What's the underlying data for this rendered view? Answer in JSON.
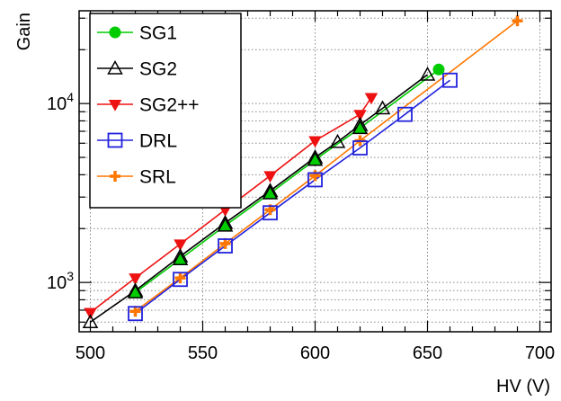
{
  "chart_data": {
    "type": "line",
    "title": "",
    "xlabel": "HV (V)",
    "ylabel": "Gain",
    "xlim": [
      495,
      705
    ],
    "ylim": [
      530,
      33000
    ],
    "yscale": "log",
    "grid": true,
    "legend_position": "top-left",
    "x_ticks": [
      500,
      550,
      600,
      650,
      700
    ],
    "y_ticks": [
      {
        "value": 1000,
        "base": "10",
        "exp": "3"
      },
      {
        "value": 10000,
        "base": "10",
        "exp": "4"
      }
    ],
    "series": [
      {
        "name": "SG1",
        "color": "#00cc00",
        "marker": "filled-circle",
        "x": [
          520,
          540,
          560,
          580,
          600,
          620,
          655
        ],
        "y": [
          880,
          1350,
          2080,
          3150,
          4850,
          7300,
          15500
        ]
      },
      {
        "name": "SG2",
        "color": "#000000",
        "marker": "open-triangle",
        "x": [
          500,
          520,
          540,
          560,
          580,
          600,
          610,
          620,
          630,
          650
        ],
        "y": [
          600,
          900,
          1400,
          2150,
          3250,
          5000,
          6100,
          7600,
          9400,
          14500
        ]
      },
      {
        "name": "SG2++",
        "color": "#ee1111",
        "marker": "filled-triangle-down",
        "x": [
          500,
          520,
          540,
          560,
          580,
          600,
          620,
          625
        ],
        "y": [
          680,
          1060,
          1640,
          2550,
          3950,
          6200,
          8700,
          10800
        ]
      },
      {
        "name": "DRL",
        "color": "#2222dd",
        "marker": "open-square",
        "x": [
          520,
          540,
          560,
          580,
          600,
          620,
          640,
          660
        ],
        "y": [
          670,
          1040,
          1600,
          2450,
          3750,
          5650,
          8700,
          13500
        ]
      },
      {
        "name": "SRL",
        "color": "#ff7700",
        "marker": "plus",
        "x": [
          520,
          540,
          560,
          580,
          600,
          620,
          690
        ],
        "y": [
          690,
          1060,
          1650,
          2550,
          3950,
          6200,
          29000
        ]
      }
    ]
  }
}
